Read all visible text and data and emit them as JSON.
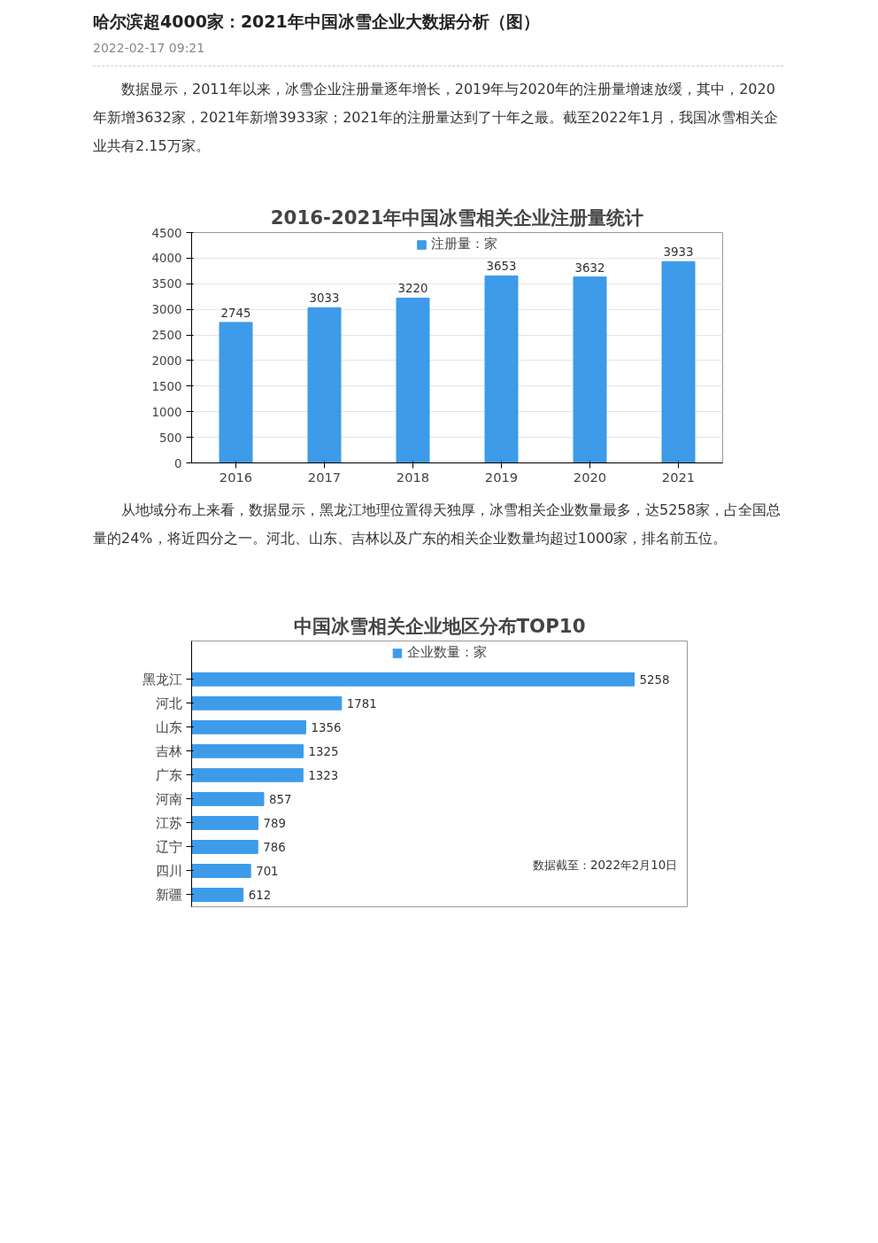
{
  "chart_data": [
    {
      "type": "other",
      "title": "哈尔滨超4000家：2021年中国冰雪企业大数据分析（图）",
      "subtitle": "2022-02-17 09:21",
      "annotations": [
        "数据显示，2011年以来，冰雪企业注册量逐年增长，2019年与2020年的注册量增速放缓，其中，2020年新增3632家，2021年新增3933家；2021年的注册量达到了十年之最。截至2022年1月，我国冰雪相关企业共有2.15万家。"
      ]
    },
    {
      "type": "bar",
      "title": "2016-2021年中国冰雪相关企业注册量统计",
      "categories": [
        "2016",
        "2017",
        "2018",
        "2019",
        "2020",
        "2021"
      ],
      "series": [
        {
          "name": "注册量：家",
          "color": "#3d9be9",
          "values": [
            2745,
            3033,
            3220,
            3653,
            3632,
            3933
          ]
        }
      ],
      "ylim": [
        0,
        4500
      ],
      "yticks": [
        0,
        500,
        1000,
        1500,
        2000,
        2500,
        3000,
        3500,
        4000,
        4500
      ],
      "grid": "y",
      "legend": "top",
      "data_labels": true
    },
    {
      "type": "other",
      "annotations": [
        "从地域分布上来看，数据显示，黑龙江地理位置得天独厚，冰雪相关企业数量最多，达5258家，占全国总量的24%，将近四分之一。河北、山东、吉林以及广东的相关企业数量均超过1000家，排名前五位。"
      ]
    },
    {
      "type": "bar",
      "orientation": "horizontal",
      "tick_labels": "y",
      "title": "中国冰雪相关企业地区分布TOP10",
      "categories": [
        "黑龙江",
        "河北",
        "山东",
        "吉林",
        "广东",
        "河南",
        "江苏",
        "辽宁",
        "四川",
        "新疆"
      ],
      "series": [
        {
          "name": "企业数量：家",
          "color": "#3d9be9",
          "values": [
            5258,
            1781,
            1356,
            1325,
            1323,
            857,
            789,
            786,
            701,
            612
          ]
        }
      ],
      "legend": "top",
      "data_labels": true,
      "annotations": [
        "数据截至：2022年2月10日"
      ]
    }
  ]
}
